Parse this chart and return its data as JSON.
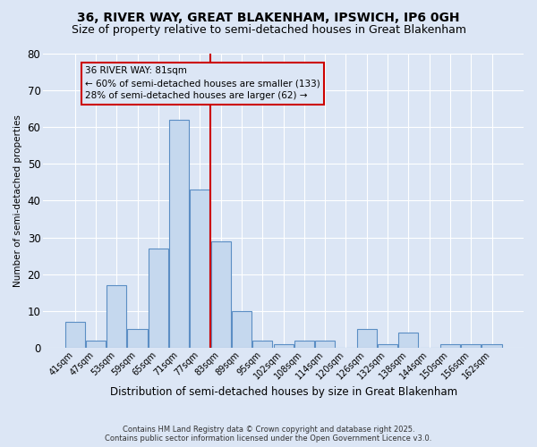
{
  "title": "36, RIVER WAY, GREAT BLAKENHAM, IPSWICH, IP6 0GH",
  "subtitle": "Size of property relative to semi-detached houses in Great Blakenham",
  "xlabel": "Distribution of semi-detached houses by size in Great Blakenham",
  "ylabel": "Number of semi-detached properties",
  "footnote1": "Contains HM Land Registry data © Crown copyright and database right 2025.",
  "footnote2": "Contains public sector information licensed under the Open Government Licence v3.0.",
  "categories": [
    "41sqm",
    "47sqm",
    "53sqm",
    "59sqm",
    "65sqm",
    "71sqm",
    "77sqm",
    "83sqm",
    "89sqm",
    "95sqm",
    "102sqm",
    "108sqm",
    "114sqm",
    "120sqm",
    "126sqm",
    "132sqm",
    "138sqm",
    "144sqm",
    "150sqm",
    "156sqm",
    "162sqm"
  ],
  "values": [
    7,
    2,
    17,
    5,
    27,
    62,
    43,
    29,
    10,
    2,
    1,
    2,
    2,
    0,
    5,
    1,
    4,
    0,
    1,
    1,
    1
  ],
  "bar_color": "#c5d8ee",
  "bar_edge_color": "#5b8ec4",
  "vline_pos": 6.5,
  "vline_color": "#cc0000",
  "annotation_title": "36 RIVER WAY: 81sqm",
  "annotation_line1": "← 60% of semi-detached houses are smaller (133)",
  "annotation_line2": "28% of semi-detached houses are larger (62) →",
  "annotation_box_edgecolor": "#cc0000",
  "ylim": [
    0,
    80
  ],
  "yticks": [
    0,
    10,
    20,
    30,
    40,
    50,
    60,
    70,
    80
  ],
  "background_color": "#dce6f5",
  "grid_color": "#ffffff",
  "title_fontsize": 10,
  "subtitle_fontsize": 9
}
